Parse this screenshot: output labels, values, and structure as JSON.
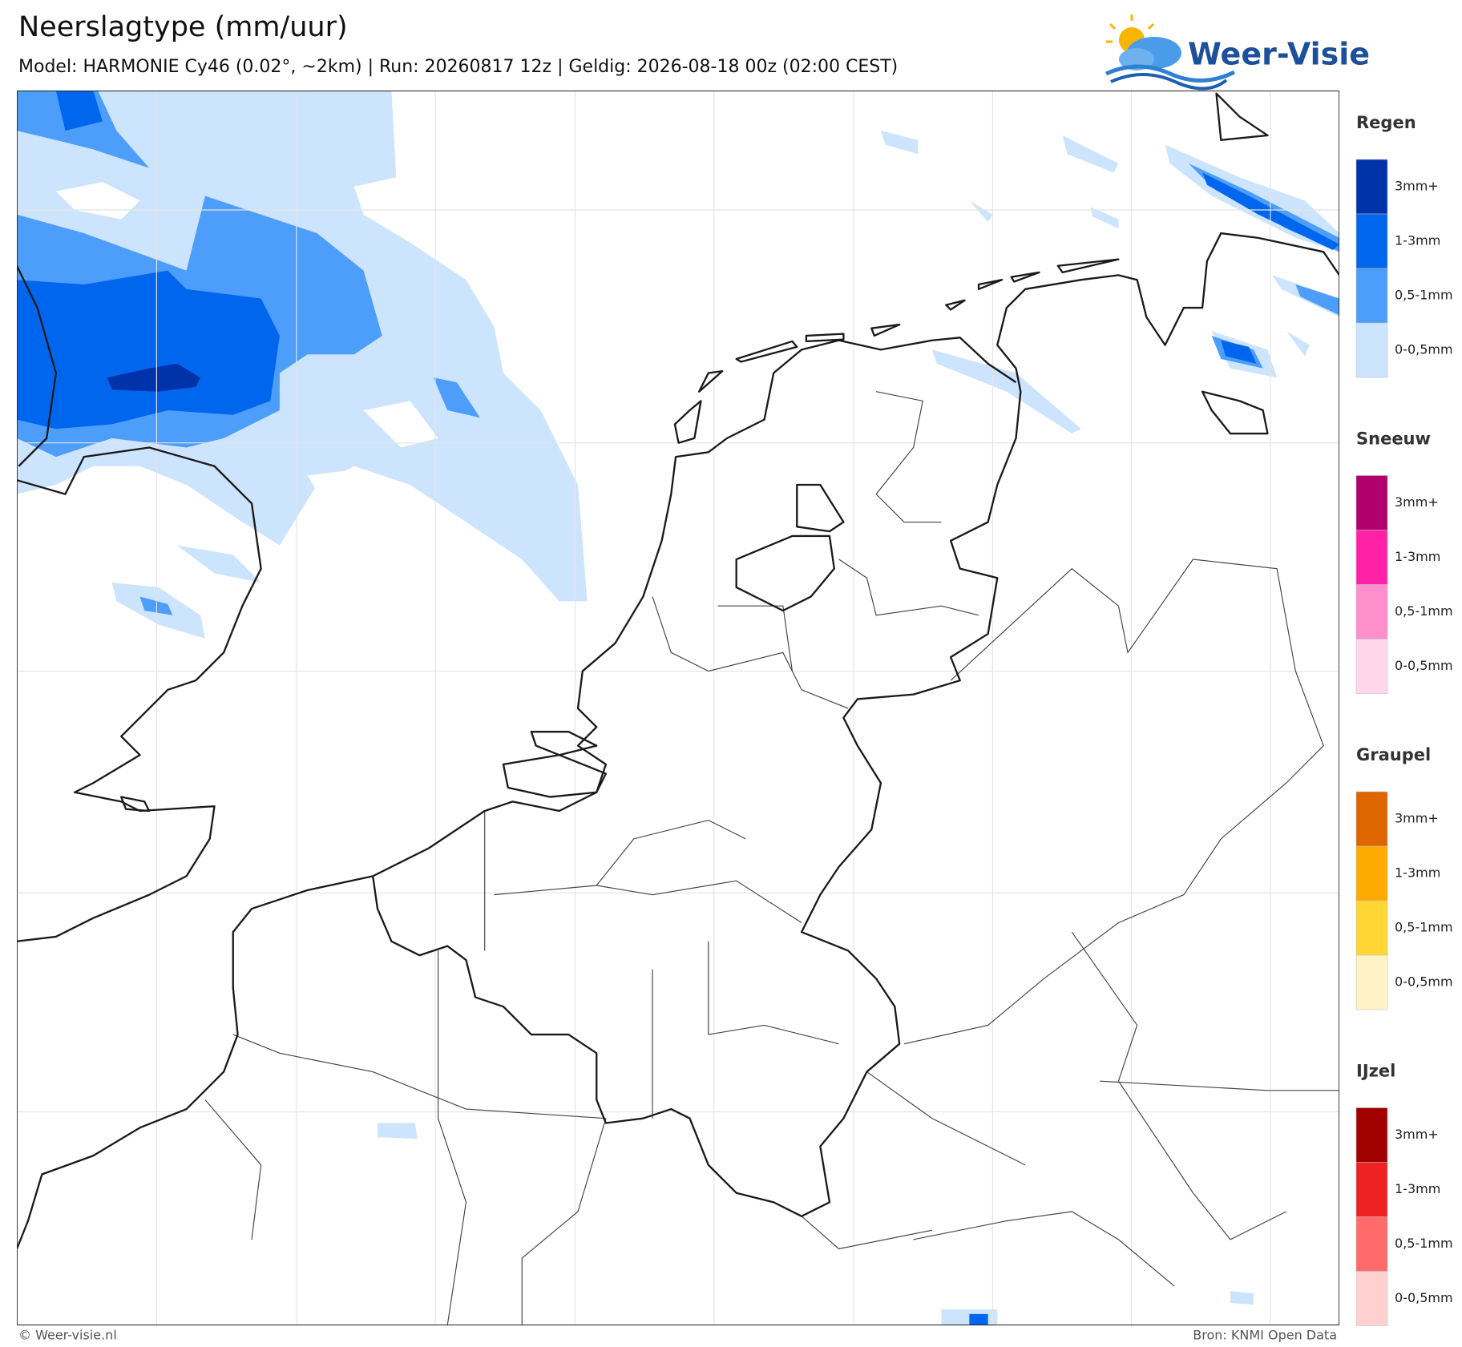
{
  "header": {
    "title": "Neerslagtype (mm/uur)",
    "subtitle": "Model: HARMONIE Cy46 (0.02°, ~2km)  |  Run: 20260817 12z  |  Geldig: 2026-08-18 00z (02:00 CEST)"
  },
  "logo": {
    "text": "Weer-Visie"
  },
  "legend": {
    "sections": [
      {
        "title": "Regen",
        "items": [
          {
            "label": "3mm+",
            "color": "#0033aa"
          },
          {
            "label": "1-3mm",
            "color": "#0066ee"
          },
          {
            "label": "0,5-1mm",
            "color": "#4d9dfa"
          },
          {
            "label": "0-0,5mm",
            "color": "#cce4fd"
          }
        ]
      },
      {
        "title": "Sneeuw",
        "items": [
          {
            "label": "3mm+",
            "color": "#b0006e"
          },
          {
            "label": "1-3mm",
            "color": "#ff22a6"
          },
          {
            "label": "0,5-1mm",
            "color": "#ff8fcc"
          },
          {
            "label": "0-0,5mm",
            "color": "#ffd6ec"
          }
        ]
      },
      {
        "title": "Graupel",
        "items": [
          {
            "label": "3mm+",
            "color": "#dd6600"
          },
          {
            "label": "1-3mm",
            "color": "#ffaa00"
          },
          {
            "label": "0,5-1mm",
            "color": "#ffd633"
          },
          {
            "label": "0-0,5mm",
            "color": "#fff2c4"
          }
        ]
      },
      {
        "title": "IJzel",
        "items": [
          {
            "label": "3mm+",
            "color": "#a00000"
          },
          {
            "label": "1-3mm",
            "color": "#ee2222"
          },
          {
            "label": "0,5-1mm",
            "color": "#ff6b6b"
          },
          {
            "label": "0-0,5mm",
            "color": "#ffd0d0"
          }
        ]
      }
    ]
  },
  "footer": {
    "left": "© Weer-visie.nl",
    "right": "Bron: KNMI Open Data"
  }
}
